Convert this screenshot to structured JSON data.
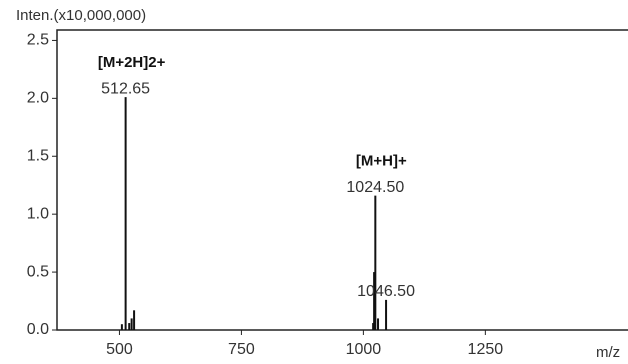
{
  "chart_data": {
    "type": "stick",
    "ylabel": "Inten.(x10,000,000)",
    "xlabel": "m/z",
    "x": [
      505,
      512.65,
      520,
      525,
      530,
      1020,
      1022,
      1024.5,
      1030,
      1046.5
    ],
    "values": [
      0.05,
      2.01,
      0.06,
      0.1,
      0.17,
      0.06,
      0.5,
      1.16,
      0.1,
      0.26
    ],
    "color": "#111111",
    "annotations": [
      {
        "x": 512.65,
        "label": "512.65",
        "ion": "[M+2H]2+"
      },
      {
        "x": 1024.5,
        "label": "1024.50",
        "ion": "[M+H]+"
      },
      {
        "x": 1046.5,
        "label": "1046.50"
      }
    ],
    "xlim": [
      372,
      1567
    ],
    "ylim": [
      0,
      2.59
    ],
    "xticks": [
      500,
      750,
      1000,
      1250
    ],
    "yticks": [
      {
        "value": 0,
        "label": "0.0"
      },
      0.5,
      {
        "value": 1,
        "label": "1.0"
      },
      1.5,
      {
        "value": 2,
        "label": "2.0"
      },
      2.5
    ]
  }
}
